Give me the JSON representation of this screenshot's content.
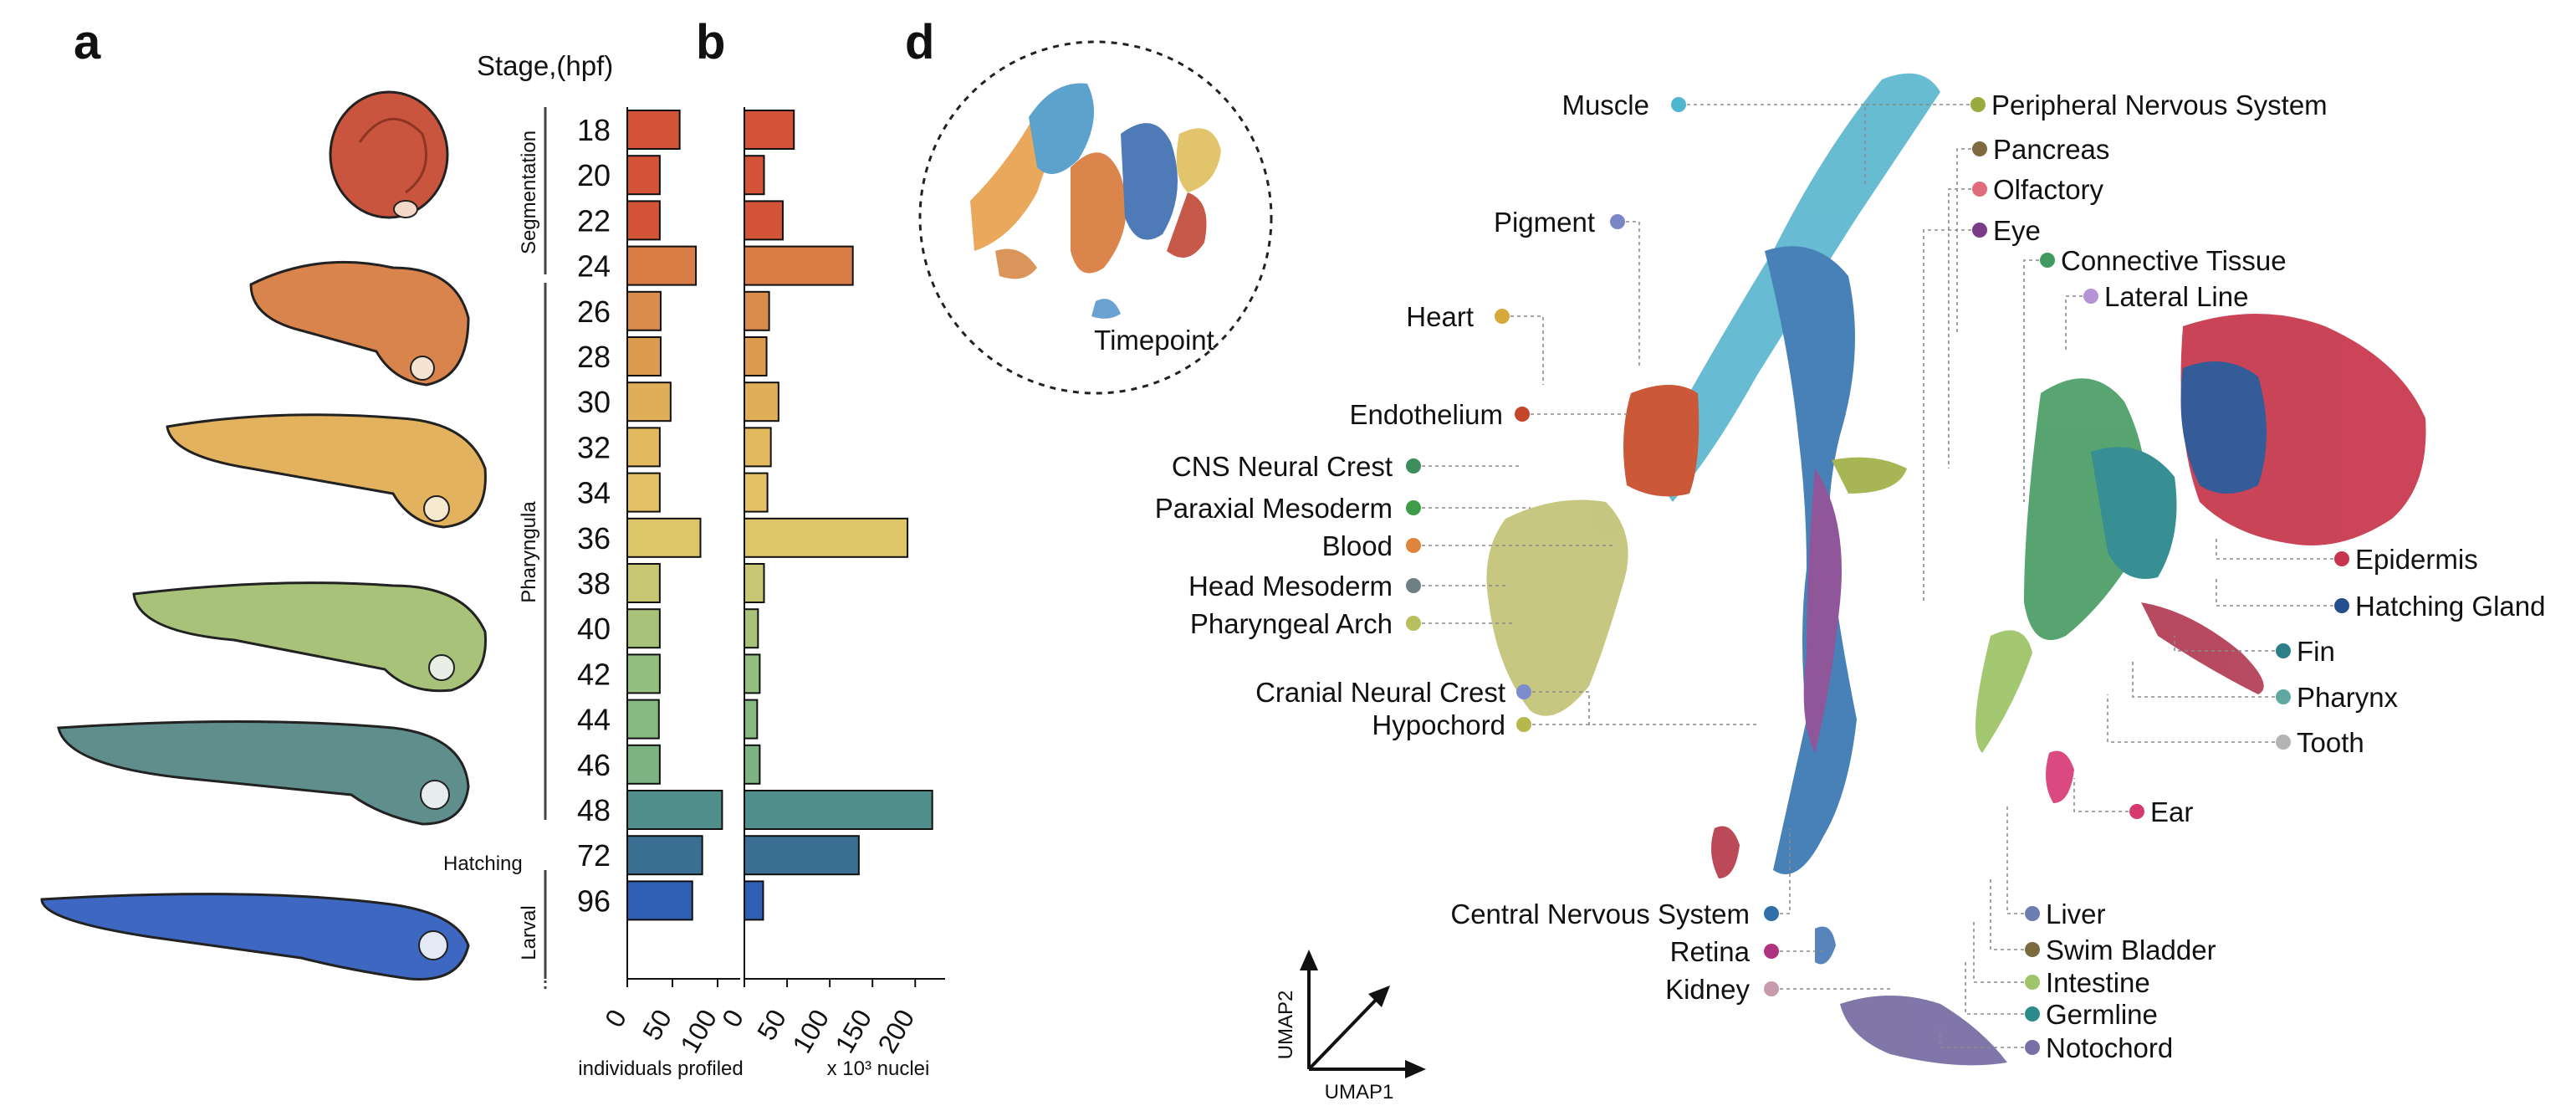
{
  "panels": {
    "a": "a",
    "b": "b",
    "d": "d"
  },
  "stage_header": "Stage,(hpf)",
  "period_labels": {
    "segmentation": "Segmentation",
    "pharyngula": "Pharyngula",
    "hatching": "Hatching",
    "larval": "Larval"
  },
  "axis_labels": {
    "individuals": "individuals profiled",
    "nuclei": "x 10³ nuclei"
  },
  "timepoint_label": "Timepoint",
  "umap_axes": {
    "x": "UMAP1",
    "y": "UMAP2"
  },
  "chart_data": [
    {
      "type": "bar",
      "orientation": "horizontal",
      "categories": [
        "18",
        "20",
        "22",
        "24",
        "26",
        "28",
        "30",
        "32",
        "34",
        "36",
        "38",
        "40",
        "42",
        "44",
        "46",
        "48",
        "72",
        "96"
      ],
      "values": [
        58,
        36,
        36,
        76,
        37,
        37,
        48,
        36,
        36,
        81,
        36,
        36,
        36,
        35,
        36,
        105,
        83,
        72
      ],
      "xlim": [
        0,
        125
      ],
      "xticks": [
        0,
        50,
        100
      ],
      "xlabel": "individuals profiled"
    },
    {
      "type": "bar",
      "orientation": "horizontal",
      "categories": [
        "18",
        "20",
        "22",
        "24",
        "26",
        "28",
        "30",
        "32",
        "34",
        "36",
        "38",
        "40",
        "42",
        "44",
        "46",
        "48",
        "72",
        "96"
      ],
      "values": [
        58,
        23,
        45,
        127,
        29,
        26,
        40,
        31,
        27,
        191,
        23,
        16,
        18,
        15,
        18,
        220,
        134,
        22
      ],
      "xlim": [
        0,
        235
      ],
      "xticks": [
        0,
        50,
        100,
        150,
        200
      ],
      "xlabel": "x 10³ nuclei"
    }
  ],
  "bar_colors": [
    "#d4543a",
    "#d4543a",
    "#d4543a",
    "#d97d46",
    "#d98d4c",
    "#dd9b50",
    "#e0ad58",
    "#e3b95e",
    "#e3c166",
    "#dfc56a",
    "#c6c673",
    "#a9c27a",
    "#93c07e",
    "#86b981",
    "#7db283",
    "#4f8e8a",
    "#3a6f93",
    "#2f5fb3"
  ],
  "cell_types_left": [
    {
      "label": "Muscle",
      "color": "#4fb6cf"
    },
    {
      "label": "Pigment",
      "color": "#7b86c6"
    },
    {
      "label": "Heart",
      "color": "#d6a93a"
    },
    {
      "label": "Endothelium",
      "color": "#c4462a"
    },
    {
      "label": "CNS Neural Crest",
      "color": "#3e8e5c"
    },
    {
      "label": "Paraxial Mesoderm",
      "color": "#3f9c48"
    },
    {
      "label": "Blood",
      "color": "#e0843c"
    },
    {
      "label": "Head Mesoderm",
      "color": "#6f7f86"
    },
    {
      "label": "Pharyngeal Arch",
      "color": "#b8c05e"
    },
    {
      "label": "Cranial Neural Crest",
      "color": "#7c8ccc"
    },
    {
      "label": "Hypochord",
      "color": "#b6b84e"
    },
    {
      "label": "Central Nervous System",
      "color": "#2f6fa8"
    },
    {
      "label": "Retina",
      "color": "#b0337f"
    },
    {
      "label": "Kidney",
      "color": "#c79aac"
    }
  ],
  "cell_types_right": [
    {
      "label": "Peripheral Nervous System",
      "color": "#9aaa3e"
    },
    {
      "label": "Pancreas",
      "color": "#7f6a40"
    },
    {
      "label": "Olfactory",
      "color": "#e06b7b"
    },
    {
      "label": "Eye",
      "color": "#7a3c86"
    },
    {
      "label": "Connective Tissue",
      "color": "#3e9a5e"
    },
    {
      "label": "Lateral Line",
      "color": "#b493d6"
    },
    {
      "label": "Epidermis",
      "color": "#c8344c"
    },
    {
      "label": "Hatching Gland",
      "color": "#244f8f"
    },
    {
      "label": "Fin",
      "color": "#2c7f89"
    },
    {
      "label": "Pharynx",
      "color": "#5fa8a0"
    },
    {
      "label": "Tooth",
      "color": "#b4b4b4"
    },
    {
      "label": "Ear",
      "color": "#d63a6c"
    },
    {
      "label": "Liver",
      "color": "#6c7fb4"
    },
    {
      "label": "Swim Bladder",
      "color": "#7a6a40"
    },
    {
      "label": "Intestine",
      "color": "#9fc46a"
    },
    {
      "label": "Germline",
      "color": "#2b8a8a"
    },
    {
      "label": "Notochord",
      "color": "#7a6fa4"
    }
  ]
}
